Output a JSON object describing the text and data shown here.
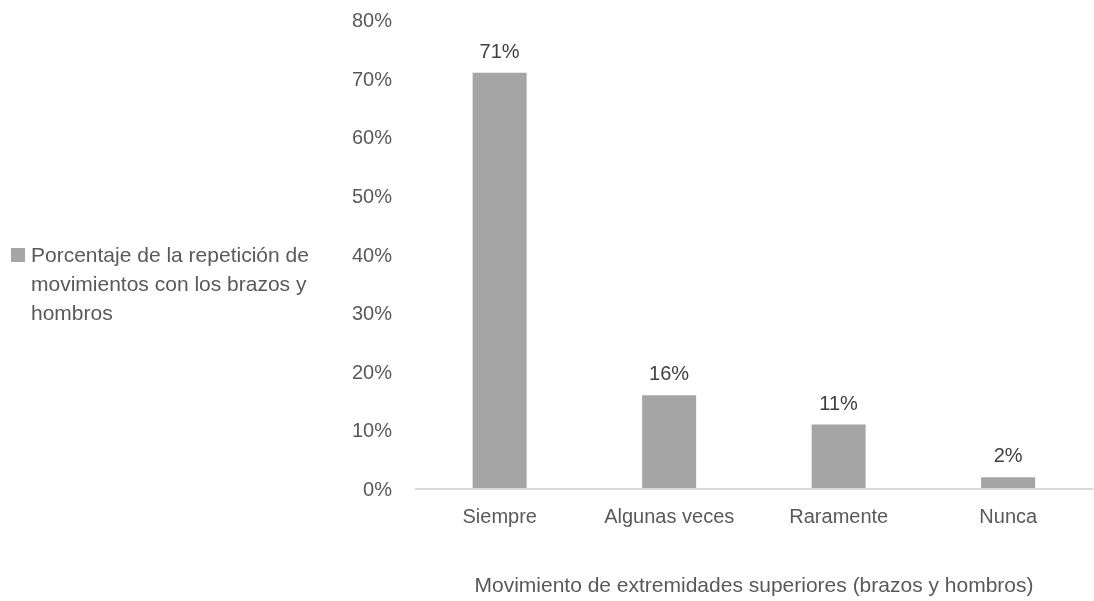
{
  "chart_data": {
    "type": "bar",
    "xlabel": "Movimiento de extremidades superiores (brazos y hombros)",
    "categories": [
      "Siempre",
      "Algunas veces",
      "Raramente",
      "Nunca"
    ],
    "series": [
      {
        "name": "Porcentaje de la repetición de movimientos con los brazos y hombros",
        "color": "#a5a5a5",
        "values": [
          71,
          16,
          11,
          2
        ],
        "value_labels": [
          "71%",
          "16%",
          "11%",
          "2%"
        ]
      }
    ],
    "ylim": [
      0,
      80
    ],
    "yticks": [
      {
        "value": 0,
        "label": "0%"
      },
      {
        "value": 10,
        "label": "10%"
      },
      {
        "value": 20,
        "label": "20%"
      },
      {
        "value": 30,
        "label": "30%"
      },
      {
        "value": 40,
        "label": "40%"
      },
      {
        "value": 50,
        "label": "50%"
      },
      {
        "value": 60,
        "label": "60%"
      },
      {
        "value": 70,
        "label": "70%"
      },
      {
        "value": 80,
        "label": "80%"
      }
    ],
    "legend": "left"
  }
}
